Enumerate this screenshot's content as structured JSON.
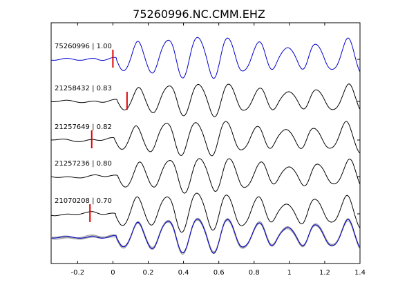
{
  "chart_data": {
    "type": "line",
    "title": "75260996.NC.CMM.EHZ",
    "xlabel": "",
    "ylabel": "",
    "xlim": [
      -0.35,
      1.4
    ],
    "x_ticks": [
      -0.2,
      0,
      0.2,
      0.4,
      0.6,
      0.8,
      1,
      1.2,
      1.4
    ],
    "x_tick_labels": [
      "-0.2",
      "0",
      "0.2",
      "0.4",
      "0.6",
      "0.8",
      "1",
      "1.2",
      "1.4"
    ],
    "grid": false,
    "colors": {
      "reference": "#0000cc",
      "trace": "#000000",
      "overlay": "#999999",
      "pick": "#dd0000"
    },
    "traces": [
      {
        "label": "75260996 | 1.00",
        "event": "75260996",
        "cc": 1.0,
        "pick": 0.0,
        "color": "reference"
      },
      {
        "label": "21258432 | 0.83",
        "event": "21258432",
        "cc": 0.83,
        "pick": 0.08,
        "color": "trace"
      },
      {
        "label": "21257649 | 0.82",
        "event": "21257649",
        "cc": 0.82,
        "pick": -0.12,
        "color": "trace"
      },
      {
        "label": "21257236 | 0.80",
        "event": "21257236",
        "cc": 0.8,
        "pick": null,
        "color": "trace"
      },
      {
        "label": "21070208 | 0.70",
        "event": "21070208",
        "cc": 0.7,
        "pick": -0.13,
        "color": "trace"
      }
    ],
    "waveform": {
      "onset": 0.02,
      "main_period": 0.17,
      "peaks_x": [
        0.14,
        0.265,
        0.345,
        0.445,
        0.535,
        0.625,
        0.745,
        0.845,
        0.935,
        1.04,
        1.125,
        1.245,
        1.335
      ]
    },
    "overlay": {
      "label": "stacked aligned traces"
    }
  }
}
